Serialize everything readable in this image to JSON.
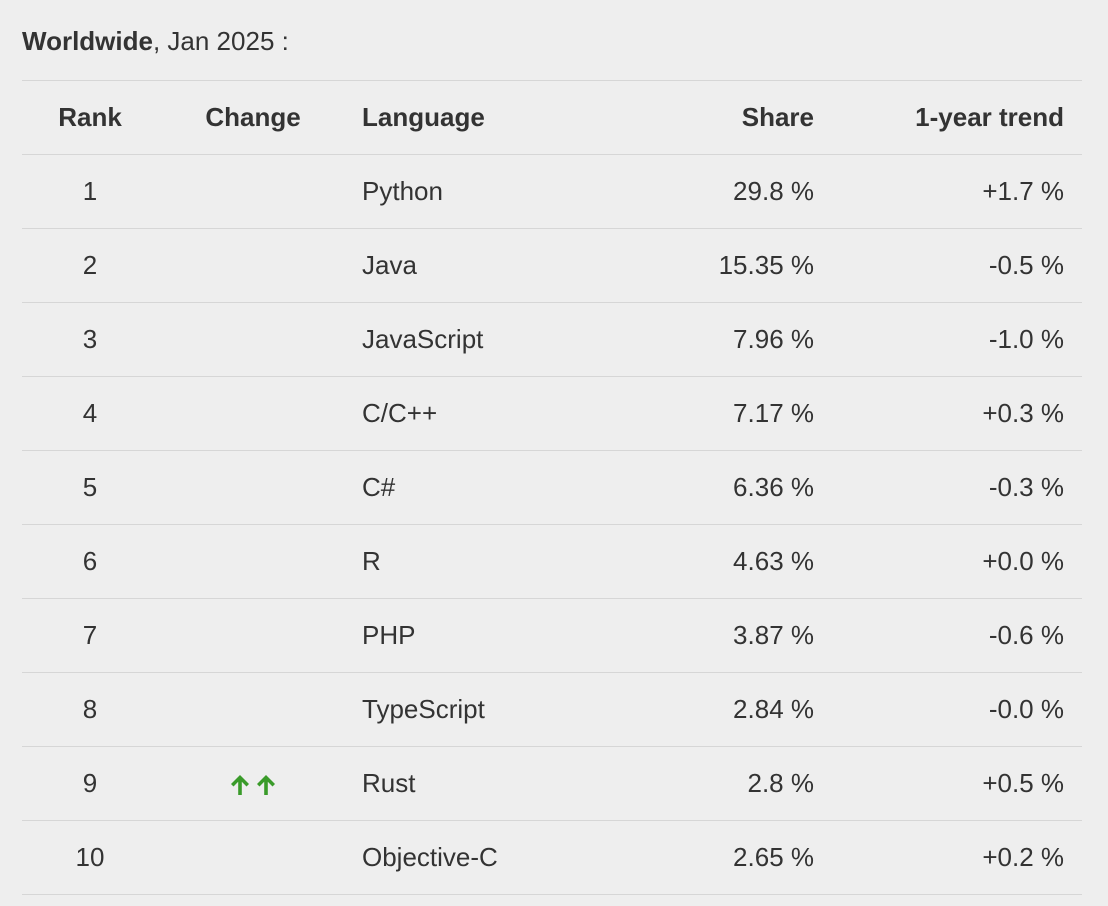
{
  "heading": {
    "region": "Worldwide",
    "period": ", Jan 2025 :"
  },
  "colors": {
    "background": "#eeeeee",
    "text": "#333333",
    "divider": "#d6d6d6",
    "arrow_up": "#3a9b2a"
  },
  "table": {
    "headers": {
      "rank": "Rank",
      "change": "Change",
      "language": "Language",
      "share": "Share",
      "trend": "1-year trend"
    },
    "rows": [
      {
        "rank": "1",
        "change": "",
        "language": "Python",
        "share": "29.8 %",
        "trend": "+1.7 %"
      },
      {
        "rank": "2",
        "change": "",
        "language": "Java",
        "share": "15.35 %",
        "trend": "-0.5 %"
      },
      {
        "rank": "3",
        "change": "",
        "language": "JavaScript",
        "share": "7.96 %",
        "trend": "-1.0 %"
      },
      {
        "rank": "4",
        "change": "",
        "language": "C/C++",
        "share": "7.17 %",
        "trend": "+0.3 %"
      },
      {
        "rank": "5",
        "change": "",
        "language": "C#",
        "share": "6.36 %",
        "trend": "-0.3 %"
      },
      {
        "rank": "6",
        "change": "",
        "language": "R",
        "share": "4.63 %",
        "trend": "+0.0 %"
      },
      {
        "rank": "7",
        "change": "",
        "language": "PHP",
        "share": "3.87 %",
        "trend": "-0.6 %"
      },
      {
        "rank": "8",
        "change": "",
        "language": "TypeScript",
        "share": "2.84 %",
        "trend": "-0.0 %"
      },
      {
        "rank": "9",
        "change": "double-up-arrow-icon",
        "language": "Rust",
        "share": "2.8 %",
        "trend": "+0.5 %"
      },
      {
        "rank": "10",
        "change": "",
        "language": "Objective-C",
        "share": "2.65 %",
        "trend": "+0.2 %"
      }
    ]
  }
}
